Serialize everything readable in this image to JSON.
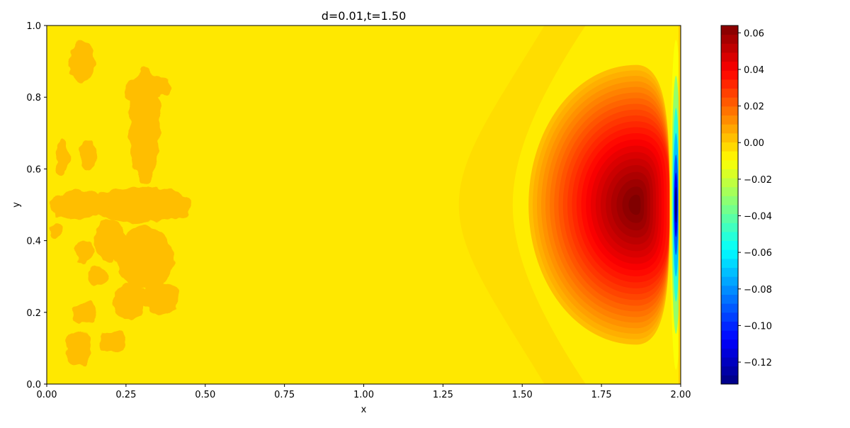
{
  "chart_data": {
    "type": "heatmap",
    "title": "d=0.01,t=1.50",
    "xlabel": "x",
    "ylabel": "y",
    "xlim": [
      0.0,
      2.0
    ],
    "ylim": [
      0.0,
      1.0
    ],
    "clim": [
      -0.132,
      0.064
    ],
    "colormap": "jet",
    "grid": false,
    "x_ticks": [
      0.0,
      0.25,
      0.5,
      0.75,
      1.0,
      1.25,
      1.5,
      1.75,
      2.0
    ],
    "x_tick_labels": [
      "0.00",
      "0.25",
      "0.50",
      "0.75",
      "1.00",
      "1.25",
      "1.50",
      "1.75",
      "2.00"
    ],
    "y_ticks": [
      0.0,
      0.2,
      0.4,
      0.6,
      0.8,
      1.0
    ],
    "y_tick_labels": [
      "0.0",
      "0.2",
      "0.4",
      "0.6",
      "0.8",
      "1.0"
    ],
    "colorbar_ticks": [
      0.06,
      0.04,
      0.02,
      0.0,
      -0.02,
      -0.04,
      -0.06,
      -0.08,
      -0.1,
      -0.12
    ],
    "colorbar_tick_labels": [
      "0.06",
      "0.04",
      "0.02",
      "0.00",
      "−0.02",
      "−0.04",
      "−0.06",
      "−0.08",
      "−0.10",
      "−0.12"
    ],
    "field": {
      "background_value": 0.0,
      "far_field_value": -0.006,
      "peak": {
        "x": 1.86,
        "y": 0.5,
        "value": 0.064
      },
      "trough": {
        "x": 1.99,
        "y": 0.5,
        "value": -0.132
      },
      "noisy_region": {
        "x_range": [
          0.0,
          0.44
        ],
        "y_range": [
          0.0,
          0.98
        ],
        "value": 0.003
      }
    }
  }
}
